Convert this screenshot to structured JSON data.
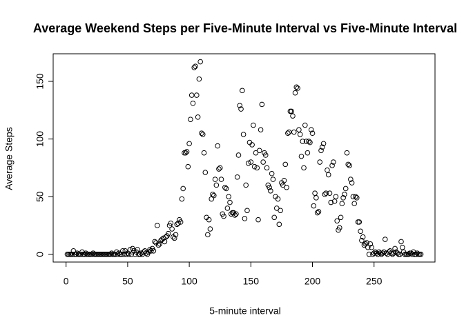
{
  "chart_data": {
    "type": "scatter",
    "title": "Average Weekend Steps per Five-Minute Interval vs Five-Minute Interval",
    "xlabel": "5-minute interval",
    "ylabel": "Average Steps",
    "color": "#000000",
    "xlim": [
      -10.48,
      299.48
    ],
    "ylim": [
      -6.7,
      173.9
    ],
    "xticks": [
      0,
      50,
      100,
      150,
      200,
      250
    ],
    "yticks": [
      0,
      50,
      100,
      150
    ],
    "x": [
      1,
      2,
      3,
      4,
      5,
      6,
      7,
      8,
      9,
      10,
      11,
      12,
      13,
      14,
      15,
      16,
      17,
      18,
      19,
      20,
      21,
      22,
      23,
      24,
      25,
      26,
      27,
      28,
      29,
      30,
      31,
      32,
      33,
      34,
      35,
      36,
      37,
      38,
      39,
      40,
      41,
      42,
      43,
      44,
      45,
      46,
      47,
      48,
      49,
      50,
      51,
      52,
      53,
      54,
      55,
      56,
      57,
      58,
      59,
      60,
      61,
      62,
      63,
      64,
      65,
      66,
      67,
      68,
      69,
      70,
      71,
      72,
      73,
      74,
      75,
      76,
      77,
      78,
      79,
      80,
      81,
      82,
      83,
      84,
      85,
      86,
      87,
      88,
      89,
      90,
      91,
      92,
      93,
      94,
      95,
      96,
      97,
      98,
      99,
      100,
      101,
      102,
      103,
      104,
      105,
      106,
      107,
      108,
      109,
      110,
      111,
      112,
      113,
      114,
      115,
      116,
      117,
      118,
      119,
      120,
      121,
      122,
      123,
      124,
      125,
      126,
      127,
      128,
      129,
      130,
      131,
      132,
      133,
      134,
      135,
      136,
      137,
      138,
      139,
      140,
      141,
      142,
      143,
      144,
      145,
      146,
      147,
      148,
      149,
      150,
      151,
      152,
      153,
      154,
      155,
      156,
      157,
      158,
      159,
      160,
      161,
      162,
      163,
      164,
      165,
      166,
      167,
      168,
      169,
      170,
      171,
      172,
      173,
      174,
      175,
      176,
      177,
      178,
      179,
      180,
      181,
      182,
      183,
      184,
      185,
      186,
      187,
      188,
      189,
      190,
      191,
      192,
      193,
      194,
      195,
      196,
      197,
      198,
      199,
      200,
      201,
      202,
      203,
      204,
      205,
      206,
      207,
      208,
      209,
      210,
      211,
      212,
      213,
      214,
      215,
      216,
      217,
      218,
      219,
      220,
      221,
      222,
      223,
      224,
      225,
      226,
      227,
      228,
      229,
      230,
      231,
      232,
      233,
      234,
      235,
      236,
      237,
      238,
      239,
      240,
      241,
      242,
      243,
      244,
      245,
      246,
      247,
      248,
      249,
      250,
      251,
      252,
      253,
      254,
      255,
      256,
      257,
      258,
      259,
      260,
      261,
      262,
      263,
      264,
      265,
      266,
      267,
      268,
      269,
      270,
      271,
      272,
      273,
      274,
      275,
      276,
      277,
      278,
      279,
      280,
      281,
      282,
      283,
      284,
      285,
      286,
      287,
      288
    ],
    "values": [
      0,
      0,
      0,
      0,
      0,
      3,
      0,
      0,
      1,
      0,
      0,
      0,
      2,
      0,
      0,
      1,
      0,
      0,
      0,
      0,
      0,
      1,
      0,
      0,
      0,
      0,
      0,
      0,
      0,
      0,
      0,
      0,
      0,
      0,
      0,
      0,
      1,
      0,
      0,
      0,
      2,
      0,
      1,
      0,
      0,
      3,
      0,
      3,
      0,
      1,
      0,
      4,
      0,
      5,
      3,
      0,
      2,
      4,
      0,
      0,
      1,
      0,
      2,
      3,
      1,
      0,
      2,
      4,
      3,
      5,
      3,
      11,
      10,
      25,
      8,
      9,
      12,
      13,
      14,
      11,
      15,
      16,
      18,
      25,
      27,
      22,
      15,
      14,
      17,
      26,
      27,
      30,
      28,
      48,
      57,
      88,
      88,
      89,
      76,
      96,
      117,
      138,
      131,
      162,
      163,
      138,
      119,
      152,
      167,
      105,
      104,
      88,
      71,
      32,
      17,
      30,
      22,
      48,
      52,
      51,
      65,
      60,
      94,
      74,
      75,
      65,
      35,
      33,
      58,
      57,
      40,
      50,
      45,
      35,
      36,
      36,
      34,
      35,
      67,
      86,
      129,
      126,
      142,
      104,
      31,
      60,
      38,
      79,
      97,
      80,
      95,
      112,
      76,
      88,
      75,
      30,
      90,
      108,
      130,
      80,
      88,
      86,
      75,
      60,
      58,
      55,
      70,
      65,
      32,
      50,
      40,
      48,
      26,
      38,
      62,
      60,
      64,
      78,
      58,
      105,
      106,
      124,
      124,
      120,
      106,
      140,
      145,
      144,
      108,
      104,
      85,
      98,
      75,
      112,
      98,
      88,
      98,
      97,
      108,
      105,
      42,
      53,
      49,
      36,
      37,
      80,
      90,
      93,
      96,
      52,
      53,
      73,
      69,
      53,
      45,
      77,
      80,
      46,
      50,
      29,
      21,
      23,
      32,
      44,
      49,
      52,
      57,
      88,
      78,
      77,
      65,
      62,
      50,
      44,
      50,
      49,
      28,
      28,
      20,
      12,
      15,
      8,
      9,
      10,
      6,
      0,
      9,
      6,
      0,
      1,
      2,
      1,
      0,
      2,
      1,
      0,
      1,
      2,
      13,
      1,
      0,
      2,
      3,
      1,
      0,
      1,
      5,
      2,
      1,
      0,
      0,
      11,
      6,
      2,
      0,
      0,
      0,
      0,
      1,
      1,
      0,
      2,
      0,
      0,
      1,
      0,
      0,
      0
    ]
  }
}
